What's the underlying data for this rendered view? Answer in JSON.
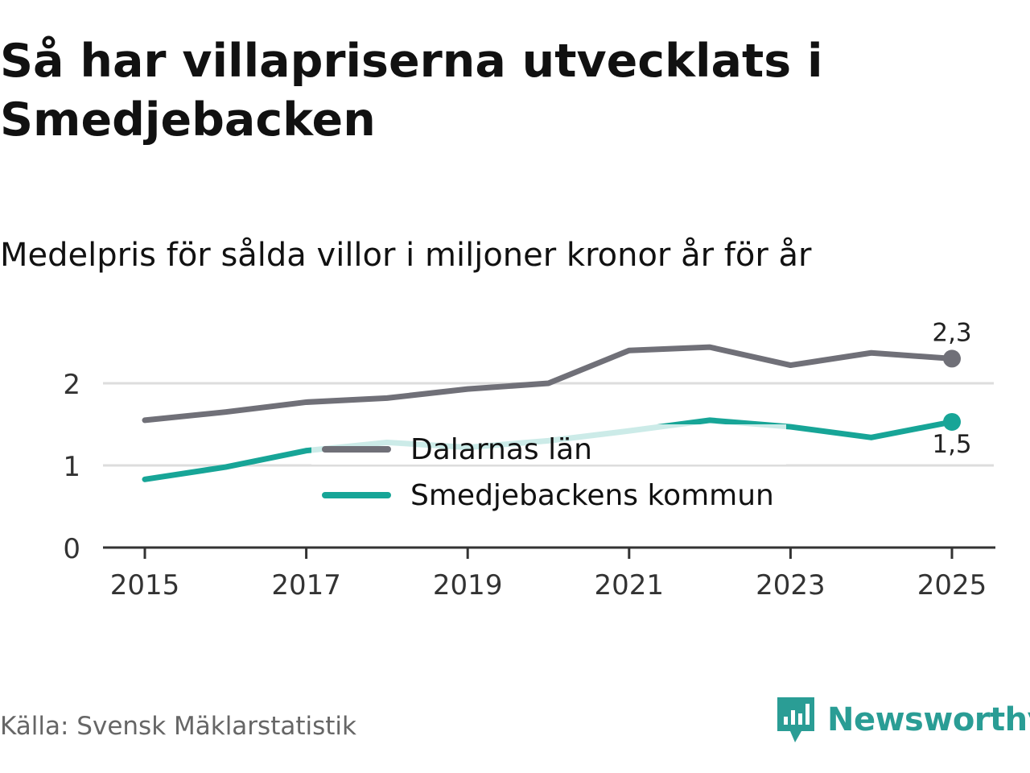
{
  "title": "Så har villapriserna utvecklats i Smedjebacken",
  "subtitle": "Medelpris för sålda villor i miljoner kronor år för år",
  "source": "Källa: Svensk Mäklarstatistik",
  "brand": {
    "name": "Newsworthy",
    "icon": "newsworthy-logo-icon"
  },
  "colors": {
    "series_a": "#707078",
    "series_b": "#17a597",
    "grid": "#dddddd",
    "axis": "#333333"
  },
  "chart_data": {
    "type": "line",
    "x": [
      2015,
      2016,
      2017,
      2018,
      2019,
      2020,
      2021,
      2022,
      2023,
      2024,
      2025
    ],
    "x_tick_labels": [
      "2015",
      "2017",
      "2019",
      "2021",
      "2023",
      "2025"
    ],
    "y_tick_labels": [
      "0",
      "1",
      "2"
    ],
    "ylim": [
      0,
      2.5
    ],
    "grid": true,
    "legend_position": "center",
    "series": [
      {
        "name": "Dalarnas län",
        "values": [
          1.55,
          1.65,
          1.77,
          1.82,
          1.93,
          2.0,
          2.4,
          2.44,
          2.22,
          2.37,
          2.3
        ],
        "end_label": "2,3"
      },
      {
        "name": "Smedjebackens kommun",
        "values": [
          0.83,
          0.98,
          1.18,
          1.28,
          1.22,
          1.3,
          1.42,
          1.55,
          1.47,
          1.34,
          1.53
        ],
        "end_label": "1,5"
      }
    ]
  }
}
